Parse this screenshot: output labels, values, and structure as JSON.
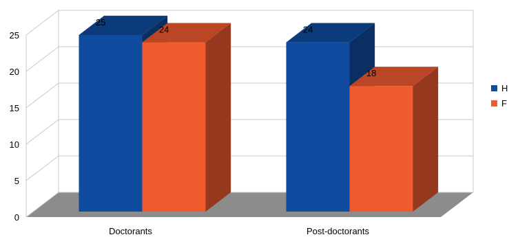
{
  "chart_data": {
    "type": "bar",
    "title": "",
    "xlabel": "",
    "ylabel": "",
    "categories": [
      "Doctorants",
      "Post-doctorants"
    ],
    "series": [
      {
        "name": "H",
        "values": [
          25,
          24
        ],
        "color": "#0f4c9f"
      },
      {
        "name": "F",
        "values": [
          24,
          18
        ],
        "color": "#f05a2f"
      }
    ],
    "ylim": [
      0,
      25
    ],
    "yticks": [
      0,
      5,
      10,
      15,
      20,
      25
    ],
    "grid": true,
    "legend": "right",
    "style": "3d"
  }
}
